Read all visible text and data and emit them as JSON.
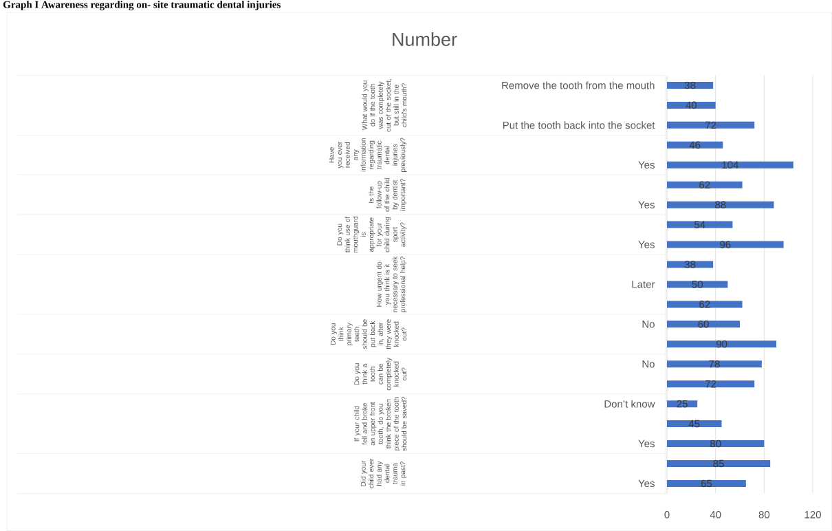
{
  "chart_data": {
    "type": "bar",
    "orientation": "horizontal",
    "title": "Graph I Awareness regarding on- site traumatic dental injuries",
    "subtitle": "Number",
    "categories": [
      "Remove the tooth from the mouth",
      null,
      "Put the tooth back into the socket",
      null,
      "Yes",
      null,
      "Yes",
      null,
      "Yes",
      null,
      "Later",
      null,
      "No",
      null,
      "No",
      null,
      "Don’t know",
      null,
      "Yes",
      null,
      "Yes"
    ],
    "values": [
      38,
      40,
      72,
      46,
      104,
      62,
      88,
      54,
      96,
      38,
      50,
      62,
      60,
      90,
      78,
      72,
      25,
      45,
      80,
      85,
      65
    ],
    "color": "#4472c4",
    "xlim": [
      0,
      120
    ],
    "xticks": [
      0,
      40,
      80,
      120
    ],
    "grid": "x",
    "data_labels": true,
    "annotations": [
      "What would you do if the tooth was completely out of the socket, but still in the child’s mouth?",
      "Have you ever received any information regarding traumatic dental injuries previously?",
      "Is the follow-up of the child by dentist important?",
      "Do you think use of mouthguard is appropriate for your child during sport activity?",
      "How urgent do you think is it necessary to seek professional help?",
      "Do you think primary teeth should be put back in, after they were knocked out?",
      "Do you think a tooth can be completely knocked out?",
      "If your child fell and broke an upper front tooth, do you think the broken piece of the tooth should be saved?",
      "Did your child ever had any dental trauma in past?"
    ]
  }
}
